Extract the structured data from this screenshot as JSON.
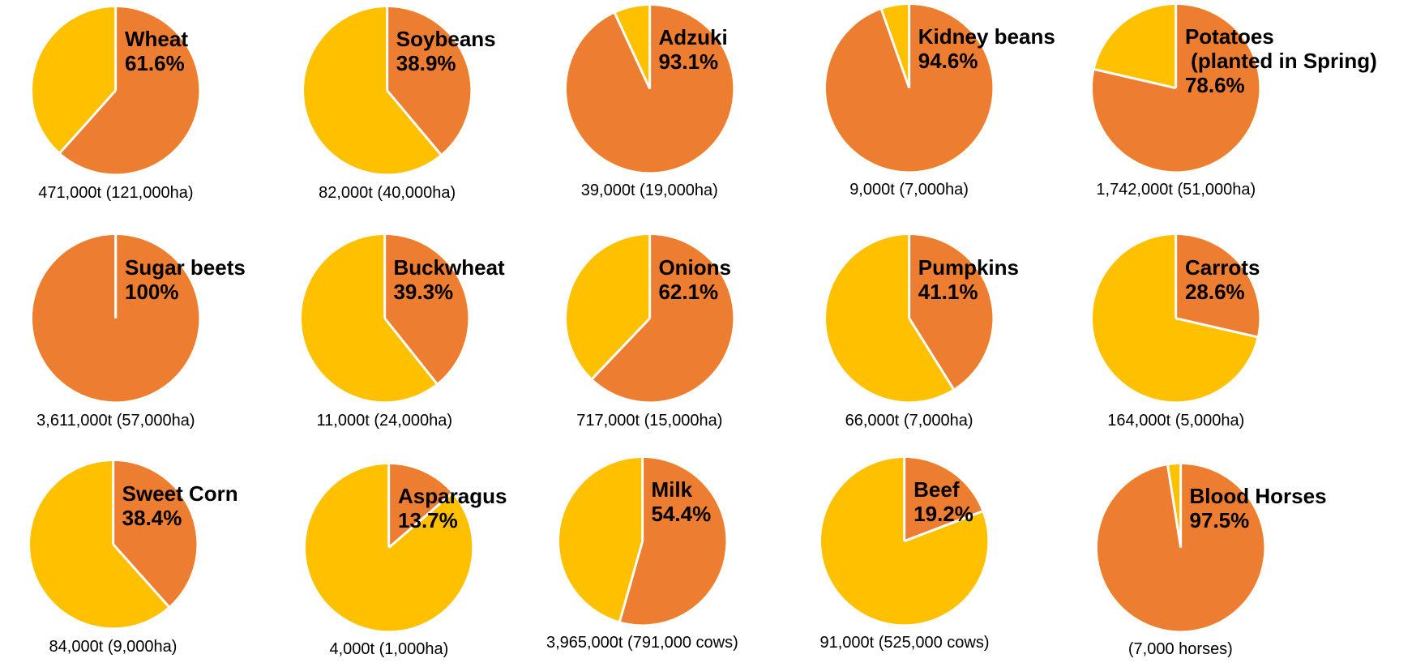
{
  "chart_data": [
    {
      "type": "pie",
      "title": "Wheat",
      "values": [
        61.6
      ],
      "value_labels": [
        "61.6%"
      ],
      "caption": "471,000t (121,000ha)",
      "colors": [
        "#ED7D31",
        "#FFC000"
      ]
    },
    {
      "type": "pie",
      "title": "Soybeans",
      "values": [
        38.9
      ],
      "value_labels": [
        "38.9%"
      ],
      "caption": "82,000t (40,000ha)",
      "colors": [
        "#ED7D31",
        "#FFC000"
      ]
    },
    {
      "type": "pie",
      "title": "Adzuki",
      "values": [
        93.1
      ],
      "value_labels": [
        "93.1%"
      ],
      "caption": "39,000t (19,000ha)",
      "colors": [
        "#ED7D31",
        "#FFC000"
      ]
    },
    {
      "type": "pie",
      "title": "Kidney beans",
      "values": [
        94.6
      ],
      "value_labels": [
        "94.6%"
      ],
      "caption": "9,000t (7,000ha)",
      "colors": [
        "#ED7D31",
        "#FFC000"
      ]
    },
    {
      "type": "pie",
      "title": "Potatoes\n (planted in Spring)",
      "values": [
        78.6
      ],
      "value_labels": [
        "78.6%"
      ],
      "caption": "1,742,000t (51,000ha)",
      "colors": [
        "#ED7D31",
        "#FFC000"
      ]
    },
    {
      "type": "pie",
      "title": "Sugar beets",
      "values": [
        100
      ],
      "value_labels": [
        "100%"
      ],
      "caption": "3,611,000t (57,000ha)",
      "colors": [
        "#ED7D31",
        "#FFC000"
      ]
    },
    {
      "type": "pie",
      "title": "Buckwheat",
      "values": [
        39.3
      ],
      "value_labels": [
        "39.3%"
      ],
      "caption": "11,000t (24,000ha)",
      "colors": [
        "#ED7D31",
        "#FFC000"
      ]
    },
    {
      "type": "pie",
      "title": "Onions",
      "values": [
        62.1
      ],
      "value_labels": [
        "62.1%"
      ],
      "caption": "717,000t (15,000ha)",
      "colors": [
        "#ED7D31",
        "#FFC000"
      ]
    },
    {
      "type": "pie",
      "title": "Pumpkins",
      "values": [
        41.1
      ],
      "value_labels": [
        "41.1%"
      ],
      "caption": "66,000t (7,000ha)",
      "colors": [
        "#ED7D31",
        "#FFC000"
      ]
    },
    {
      "type": "pie",
      "title": "Carrots",
      "values": [
        28.6
      ],
      "value_labels": [
        "28.6%"
      ],
      "caption": "164,000t (5,000ha)",
      "colors": [
        "#ED7D31",
        "#FFC000"
      ]
    },
    {
      "type": "pie",
      "title": "Sweet Corn",
      "values": [
        38.4
      ],
      "value_labels": [
        "38.4%"
      ],
      "caption": "84,000t (9,000ha)",
      "colors": [
        "#ED7D31",
        "#FFC000"
      ]
    },
    {
      "type": "pie",
      "title": "Asparagus",
      "values": [
        13.7
      ],
      "value_labels": [
        "13.7%"
      ],
      "caption": "4,000t (1,000ha)",
      "colors": [
        "#ED7D31",
        "#FFC000"
      ]
    },
    {
      "type": "pie",
      "title": "Milk",
      "values": [
        54.4
      ],
      "value_labels": [
        "54.4%"
      ],
      "caption": "3,965,000t (791,000 cows)",
      "colors": [
        "#ED7D31",
        "#FFC000"
      ]
    },
    {
      "type": "pie",
      "title": "Beef",
      "values": [
        19.2
      ],
      "value_labels": [
        "19.2%"
      ],
      "caption": "91,000t (525,000 cows)",
      "colors": [
        "#ED7D31",
        "#FFC000"
      ]
    },
    {
      "type": "pie",
      "title": "Blood Horses",
      "values": [
        97.5
      ],
      "value_labels": [
        "97.5%"
      ],
      "caption": "(7,000 horses)",
      "colors": [
        "#ED7D31",
        "#FFC000"
      ]
    }
  ]
}
